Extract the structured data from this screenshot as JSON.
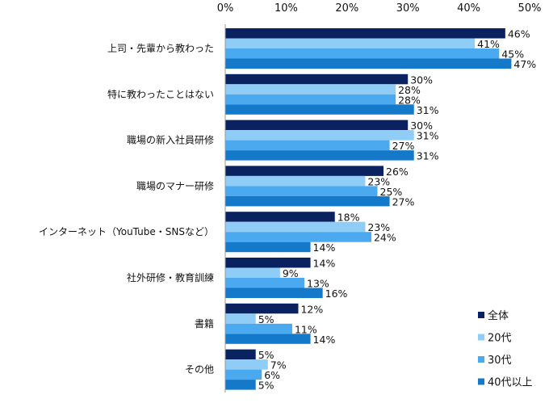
{
  "chart_data": {
    "type": "bar",
    "orientation": "horizontal",
    "categories": [
      "上司・先輩から教わった",
      "特に教わったことはない",
      "職場の新入社員研修",
      "職場のマナー研修",
      "インターネット（YouTube・SNSなど）",
      "社外研修・教育訓練",
      "書籍",
      "その他"
    ],
    "series": [
      {
        "name": "全体",
        "color": "#0b2260",
        "values": [
          46,
          30,
          30,
          26,
          18,
          14,
          12,
          5
        ]
      },
      {
        "name": "20代",
        "color": "#8fcdf6",
        "values": [
          41,
          28,
          31,
          23,
          23,
          9,
          5,
          7
        ]
      },
      {
        "name": "30代",
        "color": "#4aa9ef",
        "values": [
          45,
          28,
          27,
          25,
          24,
          13,
          11,
          6
        ]
      },
      {
        "name": "40代以上",
        "color": "#1479c9",
        "values": [
          47,
          31,
          31,
          27,
          14,
          16,
          14,
          5
        ]
      }
    ],
    "xlim": [
      0,
      50
    ],
    "xticks": [
      "0%",
      "10%",
      "20%",
      "30%",
      "40%",
      "50%"
    ],
    "value_suffix": "%",
    "axis_position": "top",
    "grid": false,
    "legend_position": "bottom-right"
  }
}
